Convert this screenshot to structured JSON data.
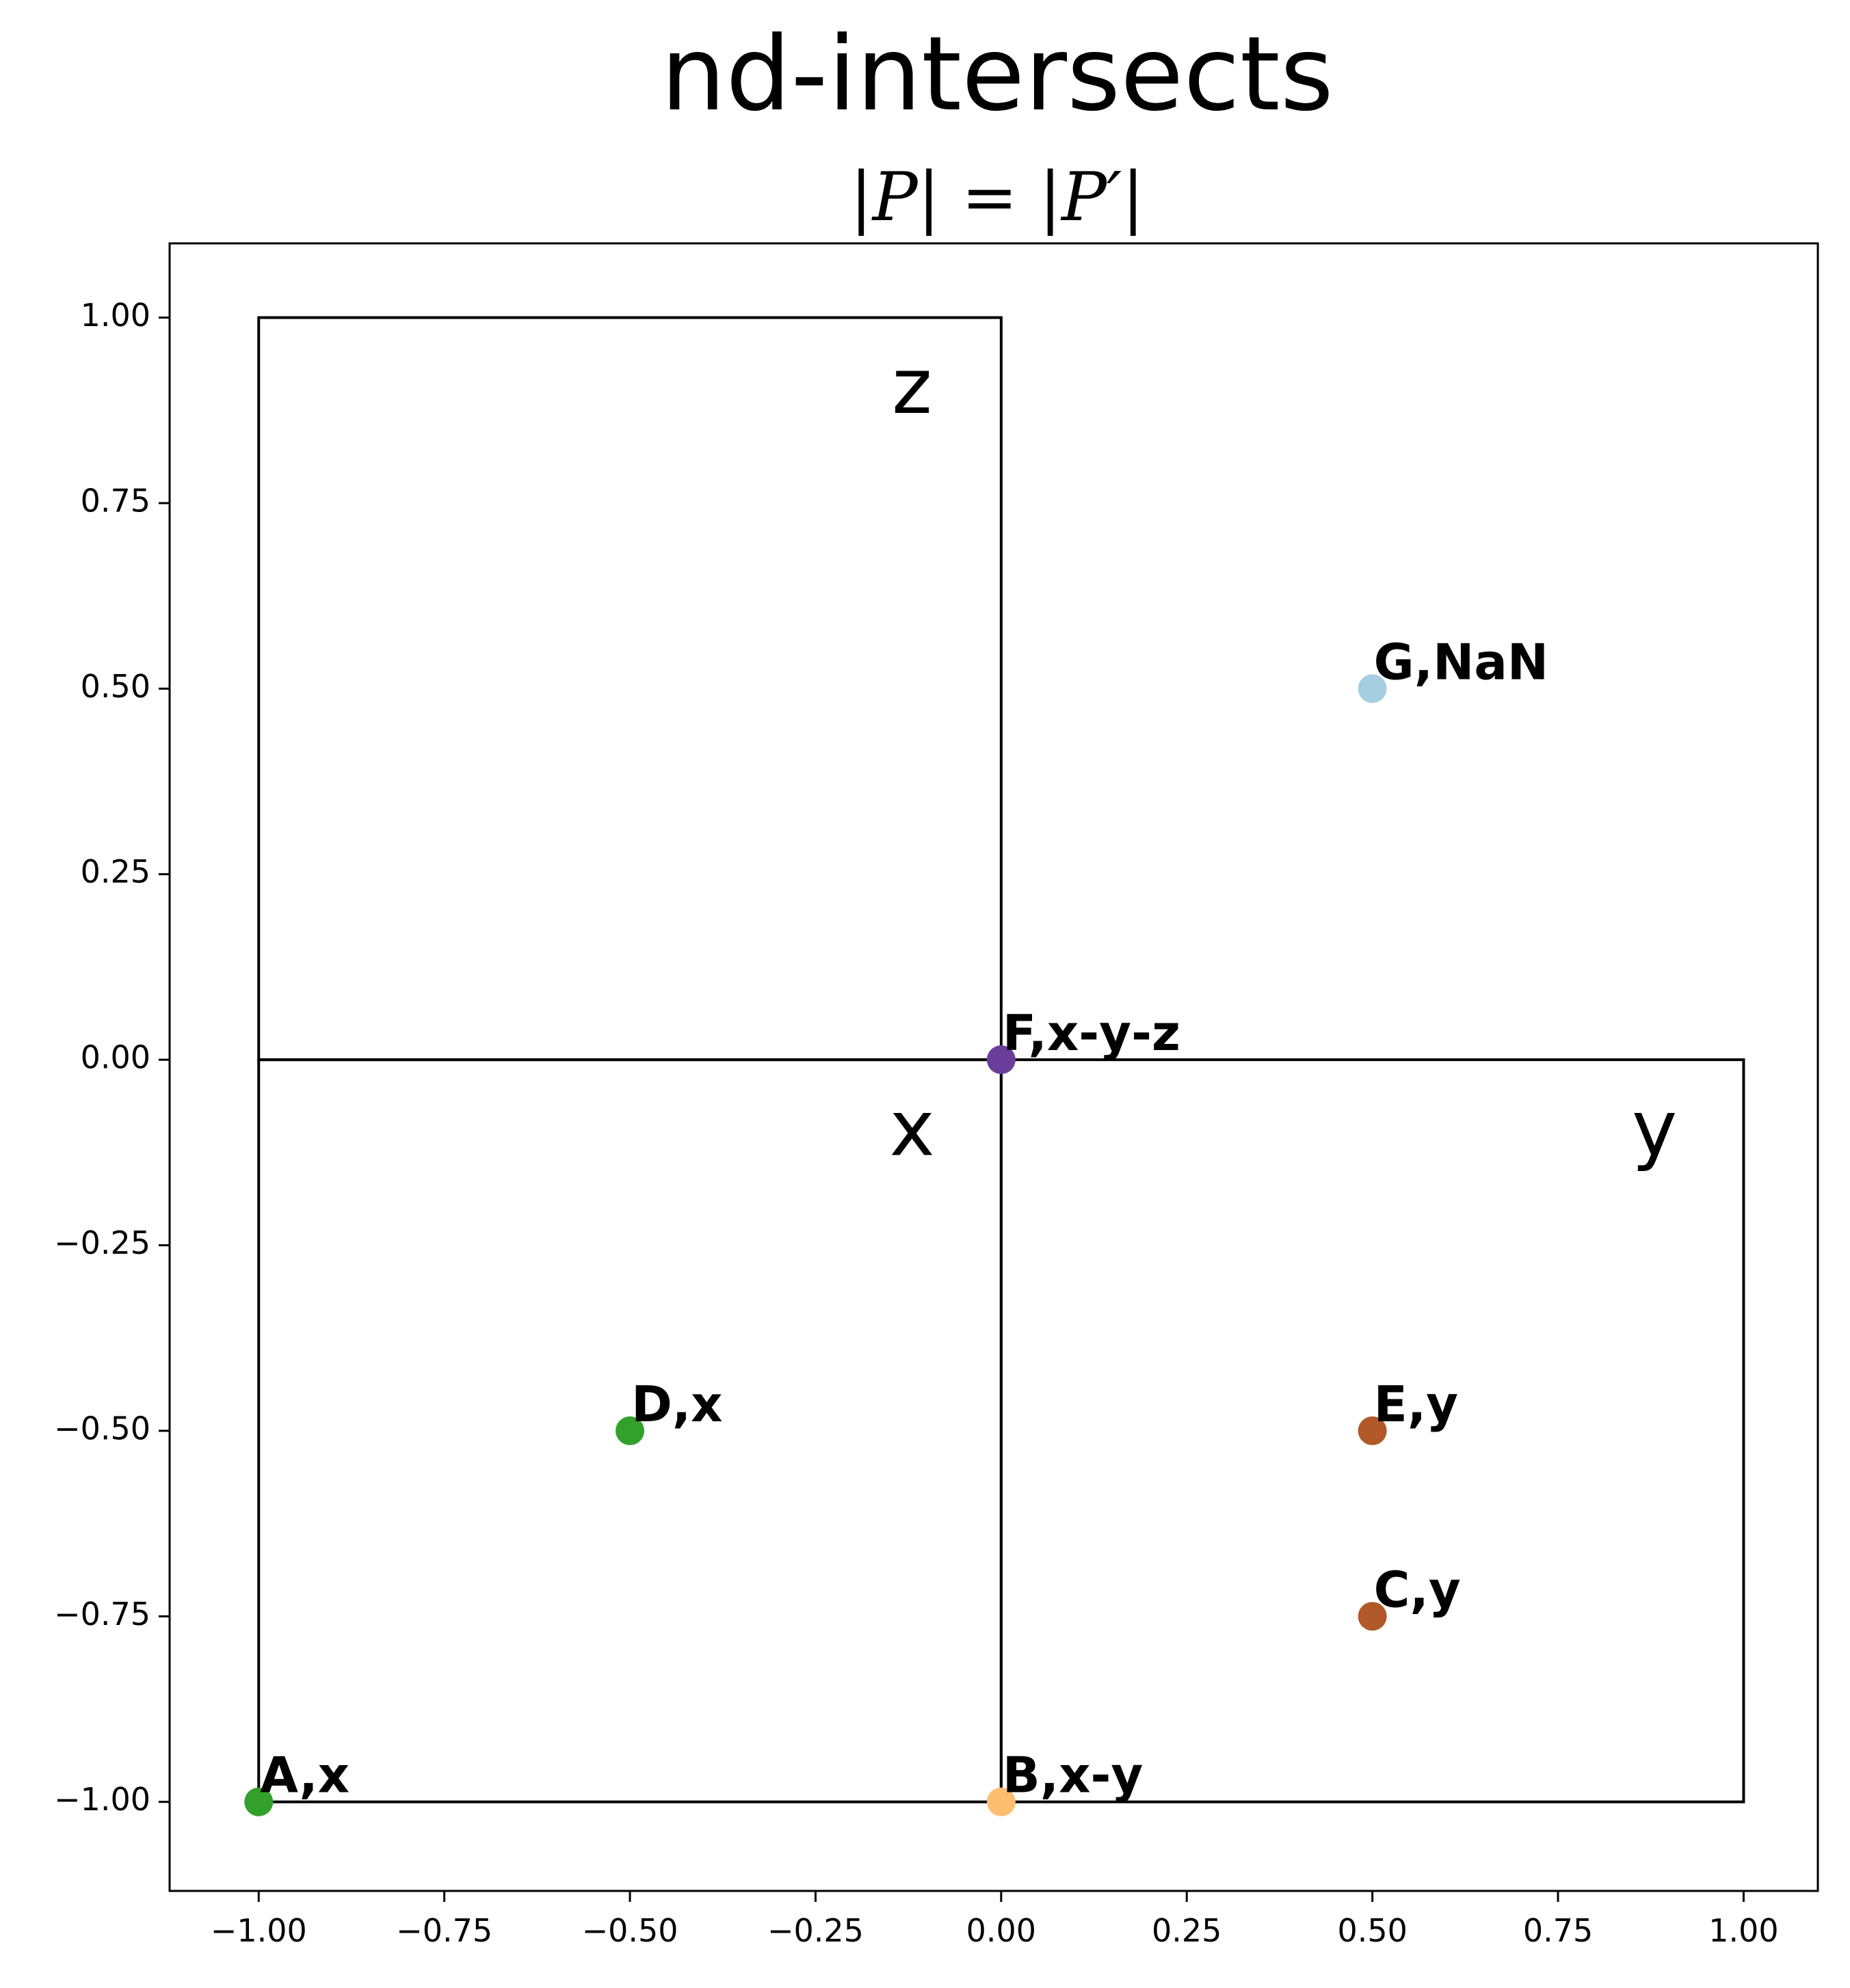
{
  "chart_data": {
    "type": "scatter",
    "title": "nd-intersects",
    "subtitle": "|P| = |P′|",
    "xlabel": "",
    "ylabel": "",
    "xlim": [
      -1.12,
      1.1
    ],
    "ylim": [
      -1.12,
      1.1
    ],
    "grid": false,
    "x_ticks": [
      -1.0,
      -0.75,
      -0.5,
      -0.25,
      0.0,
      0.25,
      0.5,
      0.75,
      1.0
    ],
    "x_tick_labels": [
      "−1.00",
      "−0.75",
      "−0.50",
      "−0.25",
      "0.00",
      "0.25",
      "0.50",
      "0.75",
      "1.00"
    ],
    "y_ticks": [
      1.0,
      0.75,
      0.5,
      0.25,
      0.0,
      -0.25,
      -0.5,
      -0.75,
      -1.0
    ],
    "y_tick_labels": [
      "1.00",
      "0.75",
      "0.50",
      "0.25",
      "0.00",
      "−0.25",
      "−0.50",
      "−0.75",
      "−1.00"
    ],
    "regions": [
      {
        "label": "z",
        "x0": -1.0,
        "y0": 0.0,
        "x1": 0.0,
        "y1": 1.0,
        "label_x": -0.12,
        "label_y": 0.9
      },
      {
        "label": "x",
        "x0": -1.0,
        "y0": -1.0,
        "x1": 0.0,
        "y1": 0.0,
        "label_x": -0.12,
        "label_y": -0.1
      },
      {
        "label": "y",
        "x0": 0.0,
        "y0": -1.0,
        "x1": 1.0,
        "y1": 0.0,
        "label_x": 0.88,
        "label_y": -0.1
      }
    ],
    "points": [
      {
        "label": "A,x",
        "x": -1.0,
        "y": -1.0,
        "color": "#33a02c"
      },
      {
        "label": "B,x-y",
        "x": 0.0,
        "y": -1.0,
        "color": "#fdbf6f"
      },
      {
        "label": "C,y",
        "x": 0.5,
        "y": -0.75,
        "color": "#b15928"
      },
      {
        "label": "D,x",
        "x": -0.5,
        "y": -0.5,
        "color": "#33a02c"
      },
      {
        "label": "E,y",
        "x": 0.5,
        "y": -0.5,
        "color": "#b15928"
      },
      {
        "label": "F,x-y-z",
        "x": 0.0,
        "y": 0.0,
        "color": "#6a3d9a"
      },
      {
        "label": "G,NaN",
        "x": 0.5,
        "y": 0.5,
        "color": "#a6cee3"
      }
    ]
  }
}
